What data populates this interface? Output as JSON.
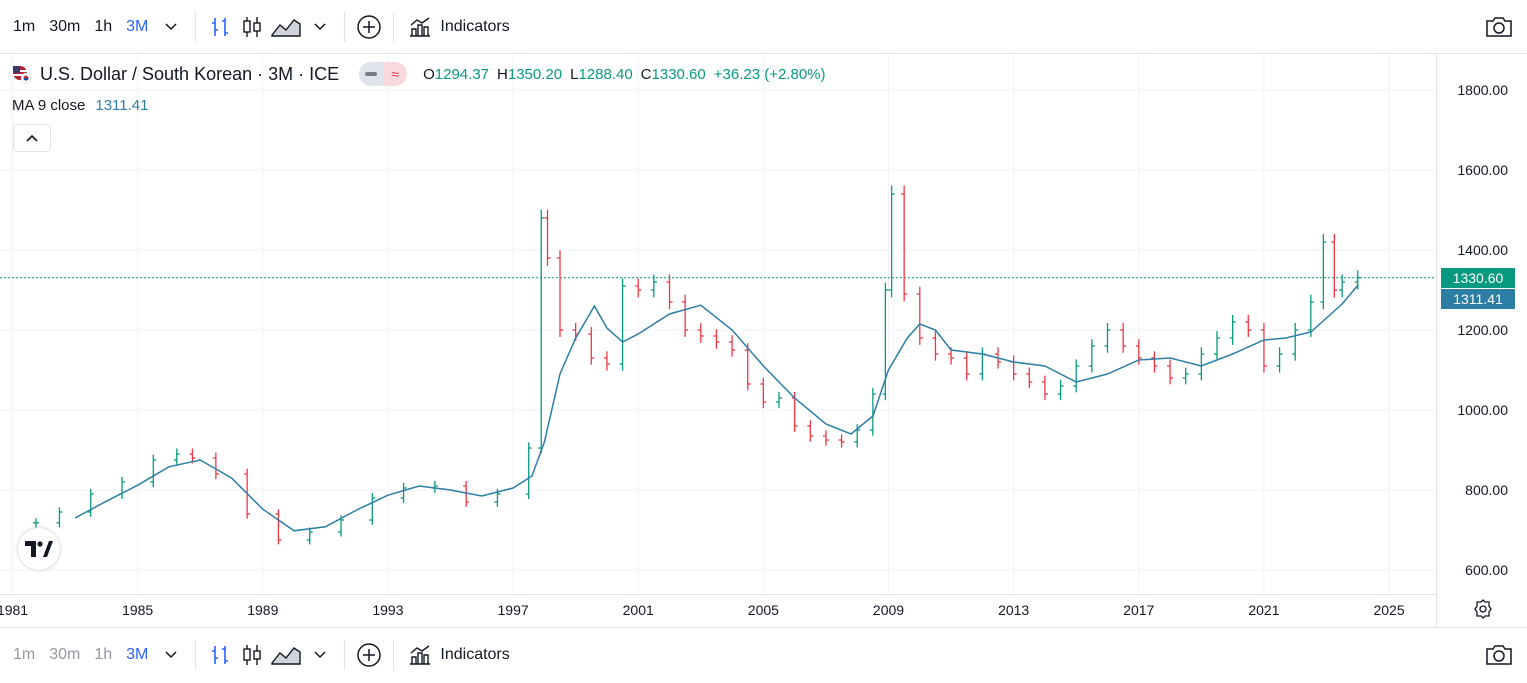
{
  "toolbar": {
    "intervals": [
      "1m",
      "30m",
      "1h",
      "3M"
    ],
    "active_interval": "3M",
    "indicators_label": "Indicators"
  },
  "legend": {
    "symbol": "U.S. Dollar / South Korean · 3M · ICE",
    "o_label": "O",
    "o": "1294.37",
    "h_label": "H",
    "h": "1350.20",
    "l_label": "L",
    "l": "1288.40",
    "c_label": "C",
    "c": "1330.60",
    "change": "+36.23 (+2.80%)",
    "ma_label": "MA 9 close",
    "ma_value": "1311.41"
  },
  "price_tags": {
    "last": "1330.60",
    "ma": "1311.41"
  },
  "colors": {
    "up": "#089981",
    "down": "#f23645",
    "ma": "#2c7ea5",
    "accent": "#2962ff"
  },
  "chart_data": {
    "type": "line",
    "x_ticks": [
      "1981",
      "1985",
      "1989",
      "1993",
      "1997",
      "2001",
      "2005",
      "2009",
      "2013",
      "2017",
      "2021",
      "2025"
    ],
    "y_ticks": [
      "600.00",
      "800.00",
      "1000.00",
      "1200.00",
      "1400.00",
      "1600.00",
      "1800.00"
    ],
    "ylim": [
      540,
      1890
    ],
    "xlim": [
      1980.6,
      2026.5
    ],
    "last_price": 1330.6,
    "series": [
      {
        "name": "USD/KRW",
        "x": [
          1981.75,
          1982.5,
          1983.5,
          1984.5,
          1985.5,
          1986.25,
          1986.75,
          1987.5,
          1988.5,
          1989.5,
          1990.5,
          1991.5,
          1992.5,
          1993.5,
          1994.5,
          1995.5,
          1996.5,
          1997.5,
          1997.9,
          1998.1,
          1998.5,
          1999.0,
          1999.5,
          2000.0,
          2000.5,
          2001.0,
          2001.5,
          2002.0,
          2002.5,
          2003.0,
          2003.5,
          2004.0,
          2004.5,
          2005.0,
          2005.5,
          2006.0,
          2006.5,
          2007.0,
          2007.5,
          2008.0,
          2008.5,
          2008.9,
          2009.1,
          2009.5,
          2010.0,
          2010.5,
          2011.0,
          2011.5,
          2012.0,
          2012.5,
          2013.0,
          2013.5,
          2014.0,
          2014.5,
          2015.0,
          2015.5,
          2016.0,
          2016.5,
          2017.0,
          2017.5,
          2018.0,
          2018.5,
          2019.0,
          2019.5,
          2020.0,
          2020.5,
          2021.0,
          2021.5,
          2022.0,
          2022.5,
          2022.9,
          2023.25,
          2023.5,
          2024.0
        ],
        "values": [
          718,
          745,
          790,
          820,
          875,
          890,
          880,
          840,
          740,
          675,
          695,
          725,
          780,
          805,
          810,
          770,
          790,
          905,
          1480,
          1380,
          1200,
          1190,
          1130,
          1115,
          1310,
          1300,
          1320,
          1270,
          1200,
          1185,
          1170,
          1150,
          1065,
          1020,
          1030,
          960,
          935,
          925,
          920,
          950,
          1040,
          1300,
          1540,
          1290,
          1180,
          1140,
          1130,
          1090,
          1140,
          1120,
          1090,
          1070,
          1040,
          1060,
          1110,
          1160,
          1200,
          1160,
          1130,
          1110,
          1080,
          1090,
          1140,
          1180,
          1220,
          1200,
          1110,
          1140,
          1200,
          1270,
          1420,
          1300,
          1320,
          1330.6
        ]
      },
      {
        "name": "MA 9 close",
        "x": [
          1983.0,
          1984.0,
          1985.0,
          1986.0,
          1987.0,
          1988.0,
          1989.0,
          1990.0,
          1991.0,
          1992.0,
          1993.0,
          1994.0,
          1995.0,
          1996.0,
          1997.0,
          1997.6,
          1998.0,
          1998.5,
          1999.0,
          1999.6,
          2000.0,
          2000.5,
          2001.0,
          2002.0,
          2003.0,
          2004.0,
          2005.0,
          2006.0,
          2007.0,
          2007.8,
          2008.5,
          2009.0,
          2009.6,
          2010.0,
          2010.5,
          2011.0,
          2012.0,
          2013.0,
          2014.0,
          2015.0,
          2016.0,
          2017.0,
          2018.0,
          2019.0,
          2020.0,
          2021.0,
          2021.7,
          2022.5,
          2023.0,
          2023.5,
          2024.0
        ],
        "values": [
          730,
          772,
          812,
          858,
          875,
          830,
          752,
          698,
          708,
          750,
          787,
          810,
          800,
          785,
          805,
          835,
          920,
          1090,
          1180,
          1260,
          1205,
          1170,
          1190,
          1240,
          1262,
          1200,
          1110,
          1030,
          965,
          940,
          985,
          1100,
          1180,
          1215,
          1200,
          1150,
          1140,
          1120,
          1110,
          1070,
          1090,
          1125,
          1130,
          1110,
          1140,
          1175,
          1180,
          1195,
          1230,
          1265,
          1311.41
        ]
      }
    ]
  }
}
